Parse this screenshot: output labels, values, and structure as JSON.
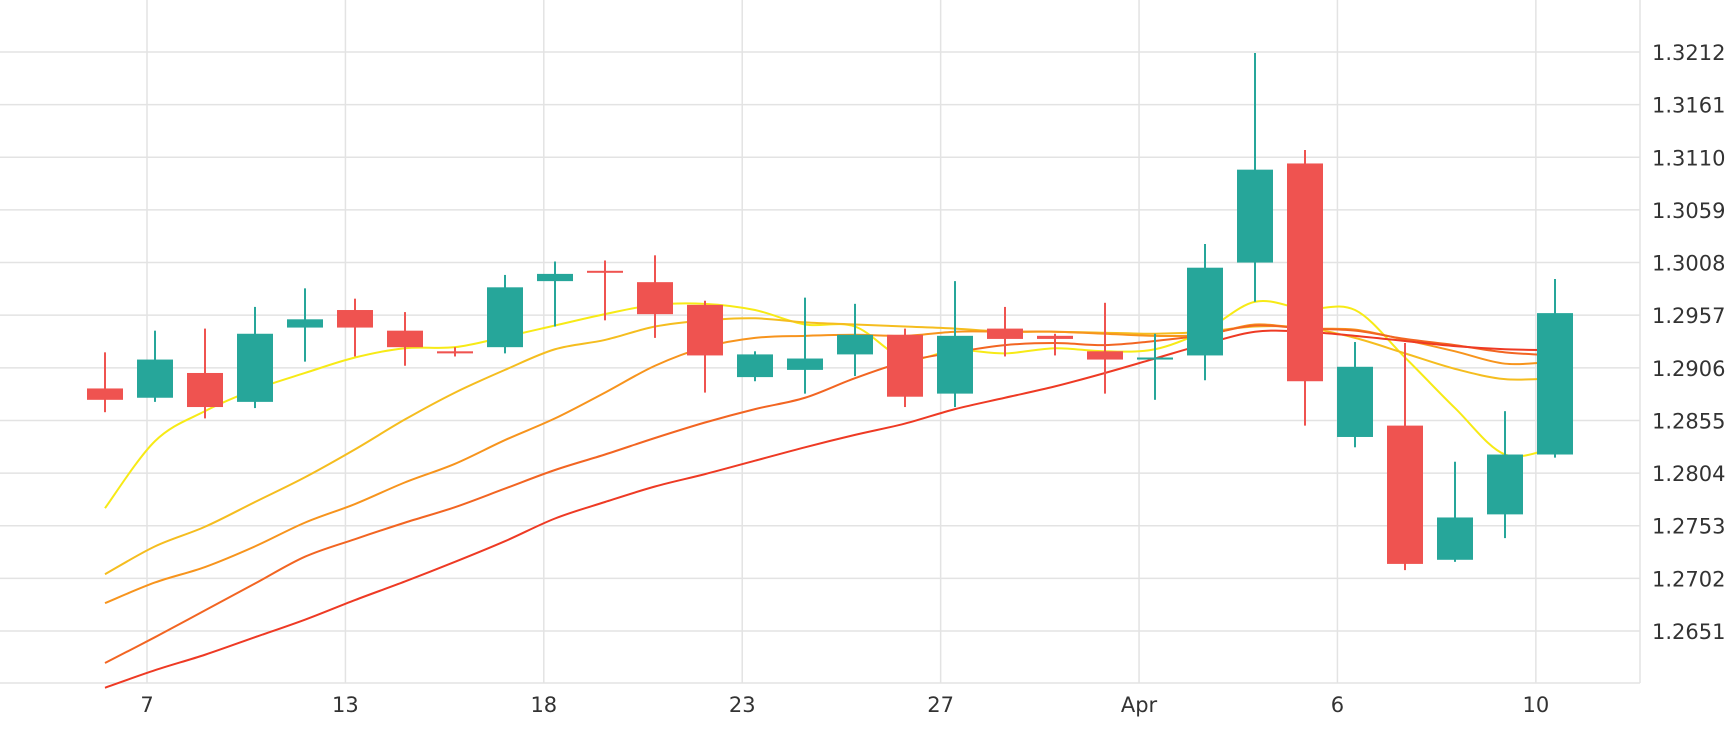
{
  "chart_data": {
    "type": "candlestick",
    "x_ticks": [
      "7",
      "13",
      "18",
      "23",
      "27",
      "Apr",
      "6",
      "10"
    ],
    "y_ticks": [
      "1.3212",
      "1.3161",
      "1.3110",
      "1.3059",
      "1.3008",
      "1.2957",
      "1.2906",
      "1.2855",
      "1.2804",
      "1.2753",
      "1.2702",
      "1.2651"
    ],
    "ylim": [
      1.26,
      1.3263
    ],
    "grid": true,
    "colors": {
      "up": "#26a69a",
      "down": "#ef5350",
      "grid": "#e3e3e3",
      "text": "#333333"
    },
    "candles": [
      {
        "o": 1.2886,
        "h": 1.2921,
        "l": 1.2863,
        "c": 1.2875
      },
      {
        "o": 1.2877,
        "h": 1.2942,
        "l": 1.2873,
        "c": 1.2914
      },
      {
        "o": 1.2901,
        "h": 1.2944,
        "l": 1.2857,
        "c": 1.2868
      },
      {
        "o": 1.2873,
        "h": 1.2965,
        "l": 1.2867,
        "c": 1.2939
      },
      {
        "o": 1.2945,
        "h": 1.2983,
        "l": 1.2912,
        "c": 1.2953
      },
      {
        "o": 1.2962,
        "h": 1.2973,
        "l": 1.2917,
        "c": 1.2945
      },
      {
        "o": 1.2942,
        "h": 1.296,
        "l": 1.2908,
        "c": 1.2926
      },
      {
        "o": 1.2922,
        "h": 1.2926,
        "l": 1.2917,
        "c": 1.292
      },
      {
        "o": 1.2926,
        "h": 1.2996,
        "l": 1.292,
        "c": 1.2984
      },
      {
        "o": 1.299,
        "h": 1.3009,
        "l": 1.2946,
        "c": 1.2997
      },
      {
        "o": 1.3,
        "h": 1.301,
        "l": 1.2952,
        "c": 1.2999
      },
      {
        "o": 1.2989,
        "h": 1.3015,
        "l": 1.2935,
        "c": 1.2958
      },
      {
        "o": 1.2967,
        "h": 1.2971,
        "l": 1.2882,
        "c": 1.2918
      },
      {
        "o": 1.2897,
        "h": 1.2922,
        "l": 1.2893,
        "c": 1.2919
      },
      {
        "o": 1.2904,
        "h": 1.2974,
        "l": 1.2881,
        "c": 1.2915
      },
      {
        "o": 1.2919,
        "h": 1.2968,
        "l": 1.2898,
        "c": 1.2938
      },
      {
        "o": 1.2938,
        "h": 1.2944,
        "l": 1.2868,
        "c": 1.2878
      },
      {
        "o": 1.2881,
        "h": 1.299,
        "l": 1.2868,
        "c": 1.2937
      },
      {
        "o": 1.2944,
        "h": 1.2965,
        "l": 1.2917,
        "c": 1.2934
      },
      {
        "o": 1.2937,
        "h": 1.2939,
        "l": 1.2918,
        "c": 1.2934
      },
      {
        "o": 1.2922,
        "h": 1.2969,
        "l": 1.2881,
        "c": 1.2914
      },
      {
        "o": 1.2914,
        "h": 1.2939,
        "l": 1.2875,
        "c": 1.2916
      },
      {
        "o": 1.2918,
        "h": 1.3026,
        "l": 1.2894,
        "c": 1.3003
      },
      {
        "o": 1.3008,
        "h": 1.3211,
        "l": 1.297,
        "c": 1.3098
      },
      {
        "o": 1.3104,
        "h": 1.3117,
        "l": 1.285,
        "c": 1.2893
      },
      {
        "o": 1.2839,
        "h": 1.2931,
        "l": 1.2829,
        "c": 1.2907
      },
      {
        "o": 1.285,
        "h": 1.293,
        "l": 1.271,
        "c": 1.2716
      },
      {
        "o": 1.272,
        "h": 1.2815,
        "l": 1.2718,
        "c": 1.2761
      },
      {
        "o": 1.2764,
        "h": 1.2864,
        "l": 1.2741,
        "c": 1.2822
      },
      {
        "o": 1.2822,
        "h": 1.2992,
        "l": 1.2819,
        "c": 1.2959
      }
    ],
    "moving_averages": [
      {
        "color": "#f7ea16",
        "values": [
          1.277,
          1.2835,
          1.2864,
          1.2885,
          1.2901,
          1.2916,
          1.2925,
          1.2926,
          1.2936,
          1.2947,
          1.2958,
          1.2967,
          1.2968,
          1.2962,
          1.2948,
          1.2946,
          1.2915,
          1.2923,
          1.292,
          1.2925,
          1.2922,
          1.2924,
          1.2942,
          1.297,
          1.2963,
          1.2962,
          1.2916,
          1.2867,
          1.2822,
          1.2829
        ]
      },
      {
        "color": "#f5bd1f",
        "values": [
          1.2706,
          1.2733,
          1.2752,
          1.2776,
          1.28,
          1.2827,
          1.2856,
          1.2882,
          1.2904,
          1.2924,
          1.2933,
          1.2946,
          1.2952,
          1.2954,
          1.295,
          1.2948,
          1.2946,
          1.2944,
          1.2941,
          1.2941,
          1.294,
          1.2939,
          1.2941,
          1.2946,
          1.2945,
          1.2935,
          1.292,
          1.2905,
          1.2895,
          1.2896
        ]
      },
      {
        "color": "#f7941d",
        "values": [
          1.2678,
          1.2698,
          1.2713,
          1.2733,
          1.2756,
          1.2774,
          1.2795,
          1.2813,
          1.2836,
          1.2857,
          1.2882,
          1.2908,
          1.2926,
          1.2935,
          1.2937,
          1.2938,
          1.2937,
          1.2941,
          1.2941,
          1.2941,
          1.2939,
          1.2937,
          1.2938,
          1.2948,
          1.2944,
          1.2943,
          1.2933,
          1.2922,
          1.291,
          1.2912
        ]
      },
      {
        "color": "#f26522",
        "values": [
          1.262,
          1.2645,
          1.2671,
          1.2697,
          1.2723,
          1.274,
          1.2756,
          1.2771,
          1.2789,
          1.2807,
          1.2822,
          1.2838,
          1.2853,
          1.2866,
          1.2877,
          1.2896,
          1.2912,
          1.2921,
          1.2928,
          1.293,
          1.2928,
          1.2932,
          1.2938,
          1.2947,
          1.2944,
          1.2942,
          1.2934,
          1.2928,
          1.2921,
          1.2918
        ]
      },
      {
        "color": "#ee3a24",
        "values": [
          1.2596,
          1.2613,
          1.2628,
          1.2645,
          1.2662,
          1.2681,
          1.2699,
          1.2718,
          1.2738,
          1.276,
          1.2776,
          1.2791,
          1.2803,
          1.2816,
          1.2829,
          1.2841,
          1.2852,
          1.2866,
          1.2877,
          1.2888,
          1.2901,
          1.2915,
          1.2929,
          1.2941,
          1.2941,
          1.2937,
          1.2932,
          1.2927,
          1.2924,
          1.2923
        ]
      }
    ]
  }
}
